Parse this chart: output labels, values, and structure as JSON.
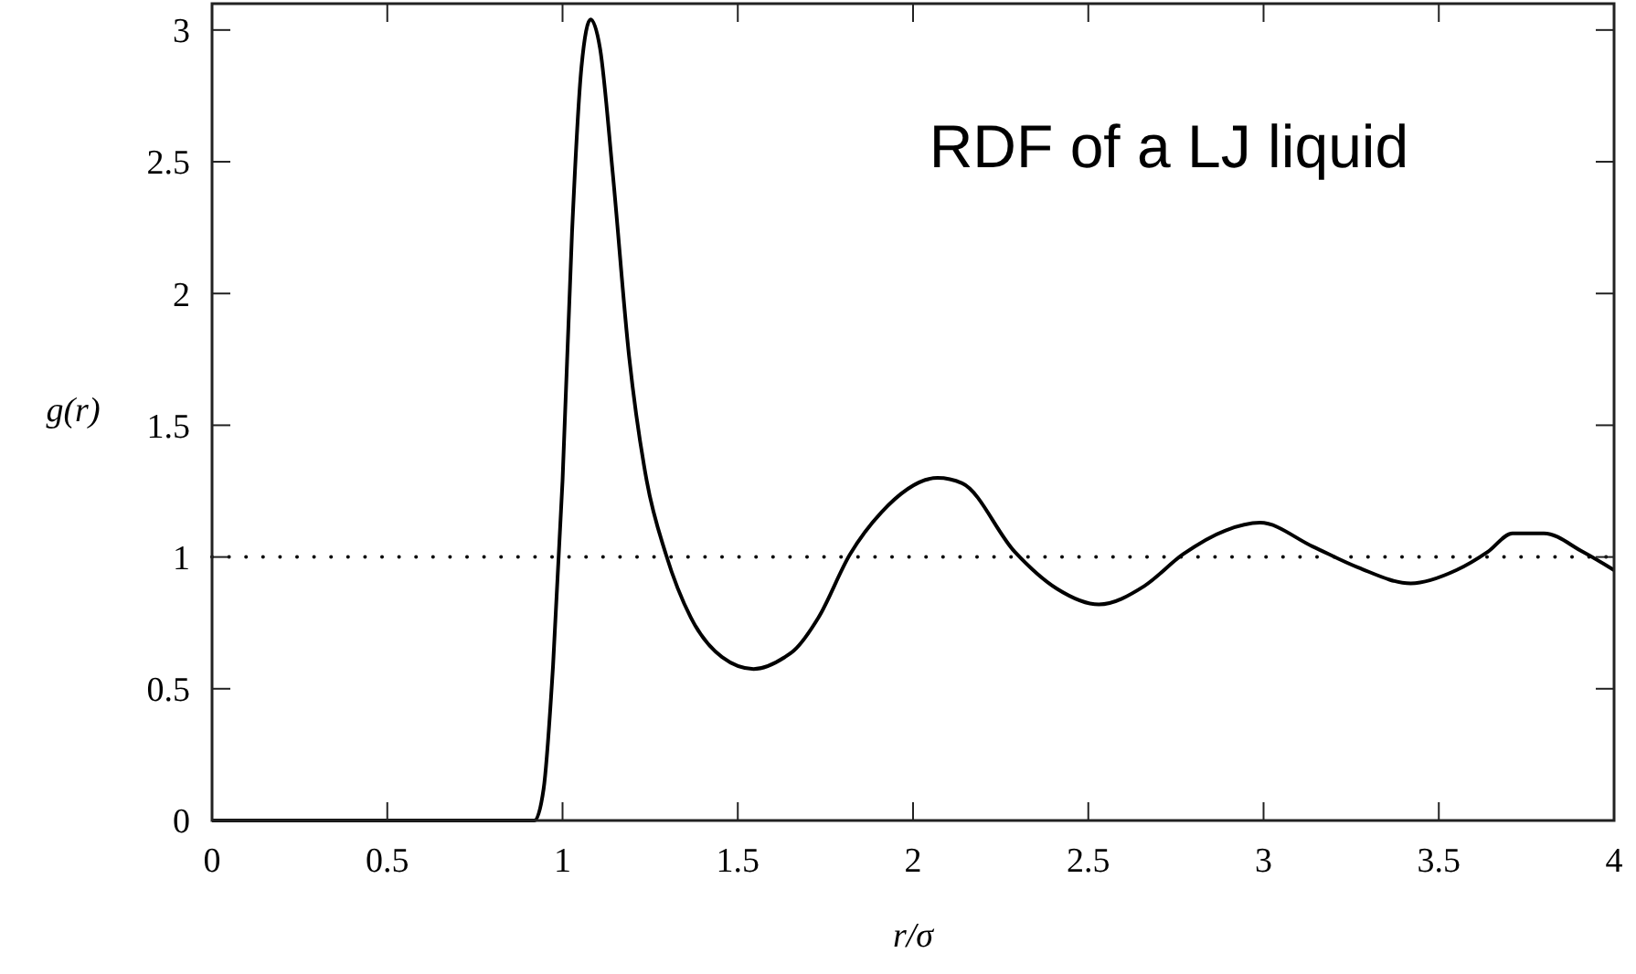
{
  "chart_data": {
    "type": "line",
    "title": "RDF of a LJ liquid",
    "xlabel": "r/σ",
    "ylabel": "g(r)",
    "xlim": [
      0,
      4
    ],
    "ylim": [
      0,
      3.1
    ],
    "xticks": [
      0,
      0.5,
      1,
      1.5,
      2,
      2.5,
      3,
      3.5,
      4
    ],
    "yticks": [
      0,
      0.5,
      1,
      1.5,
      2,
      2.5,
      3
    ],
    "grid": false,
    "marker": "none",
    "line_style": "solid",
    "ref_lines": [
      {
        "axis": "y",
        "value": 1,
        "line_style": "dotted",
        "color": "#000000"
      }
    ],
    "series": [
      {
        "color": "#000000",
        "x": [
          0,
          0.5,
          0.9,
          0.92,
          0.946,
          0.973,
          1.0,
          1.027,
          1.054,
          1.08,
          1.107,
          1.143,
          1.19,
          1.24,
          1.295,
          1.366,
          1.455,
          1.545,
          1.634,
          1.66,
          1.73,
          1.82,
          1.91,
          2.07,
          2.14,
          2.29,
          2.41,
          2.53,
          2.66,
          2.77,
          2.89,
          2.99,
          3.14,
          3.27,
          3.42,
          3.55,
          3.64,
          3.71,
          3.8,
          3.91,
          4.0
        ],
        "values": [
          0,
          0,
          0,
          0,
          0.12,
          0.59,
          1.29,
          2.23,
          2.86,
          3.04,
          2.93,
          2.46,
          1.76,
          1.29,
          1.01,
          0.77,
          0.62,
          0.575,
          0.62,
          0.645,
          0.77,
          1.01,
          1.17,
          1.3,
          1.28,
          1.02,
          0.88,
          0.82,
          0.89,
          1.01,
          1.1,
          1.13,
          1.04,
          0.96,
          0.9,
          0.95,
          1.02,
          1.09,
          1.09,
          1.02,
          0.95
        ]
      }
    ]
  }
}
